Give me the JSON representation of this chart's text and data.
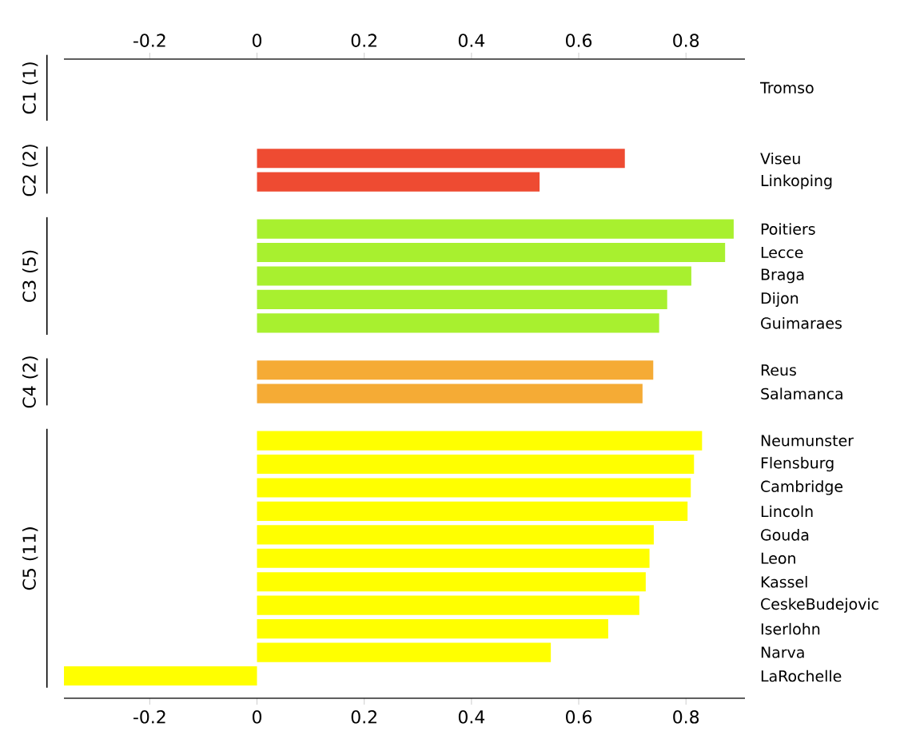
{
  "chart_data": {
    "type": "bar",
    "orientation": "horizontal",
    "categories": [
      "Tromso",
      null,
      null,
      "Viseu",
      "Linkoping",
      null,
      "Poitiers",
      "Lecce",
      "Braga",
      "Dijon",
      "Guimaraes",
      null,
      "Reus",
      "Salamanca",
      null,
      "Neumunster",
      "Flensburg",
      "Cambridge",
      "Lincoln",
      "Gouda",
      "Leon",
      "Kassel",
      "CeskeBudejovic",
      "Iserlohn",
      "Narva",
      "LaRochelle"
    ],
    "series": [
      {
        "values": [
          null,
          null,
          null,
          null,
          null,
          null,
          null,
          null,
          null,
          null,
          null,
          null,
          null,
          null,
          null,
          null,
          null,
          null,
          null,
          null,
          null,
          null,
          null,
          null,
          null,
          null
        ]
      },
      {
        "color": "#ee4b32",
        "values": [
          null,
          null,
          null,
          0.686,
          0.527,
          null,
          null,
          null,
          null,
          null,
          null,
          null,
          null,
          null,
          null,
          null,
          null,
          null,
          null,
          null,
          null,
          null,
          null,
          null,
          null,
          null
        ]
      },
      {
        "color": "#a8f02f",
        "values": [
          null,
          null,
          null,
          null,
          null,
          null,
          0.889,
          0.873,
          0.81,
          0.765,
          0.75,
          null,
          null,
          null,
          null,
          null,
          null,
          null,
          null,
          null,
          null,
          null,
          null,
          null,
          null,
          null
        ]
      },
      {
        "color": "#f5ab35",
        "values": [
          null,
          null,
          null,
          null,
          null,
          null,
          null,
          null,
          null,
          null,
          null,
          null,
          0.739,
          0.719,
          null,
          null,
          null,
          null,
          null,
          null,
          null,
          null,
          null,
          null,
          null,
          null
        ]
      },
      {
        "color": "#ffff00",
        "values": [
          null,
          null,
          null,
          null,
          null,
          null,
          null,
          null,
          null,
          null,
          null,
          null,
          null,
          null,
          null,
          0.83,
          0.815,
          0.809,
          0.803,
          0.74,
          0.732,
          0.725,
          0.713,
          0.655,
          0.548,
          -0.36
        ]
      }
    ],
    "xlim": [
      -0.36,
      0.91
    ],
    "xticks": [
      -0.2,
      0,
      0.2,
      0.4,
      0.6,
      0.8
    ],
    "x2lim": [
      -0.36,
      0.91
    ],
    "x2ticks": [
      -0.2,
      0,
      0.2,
      0.4,
      0.6,
      0.8
    ],
    "annotations": [
      "C1 (1)",
      "C2 (2)",
      "C3 (5)",
      "C4 (2)",
      "C5 (11)"
    ],
    "grid": false
  }
}
